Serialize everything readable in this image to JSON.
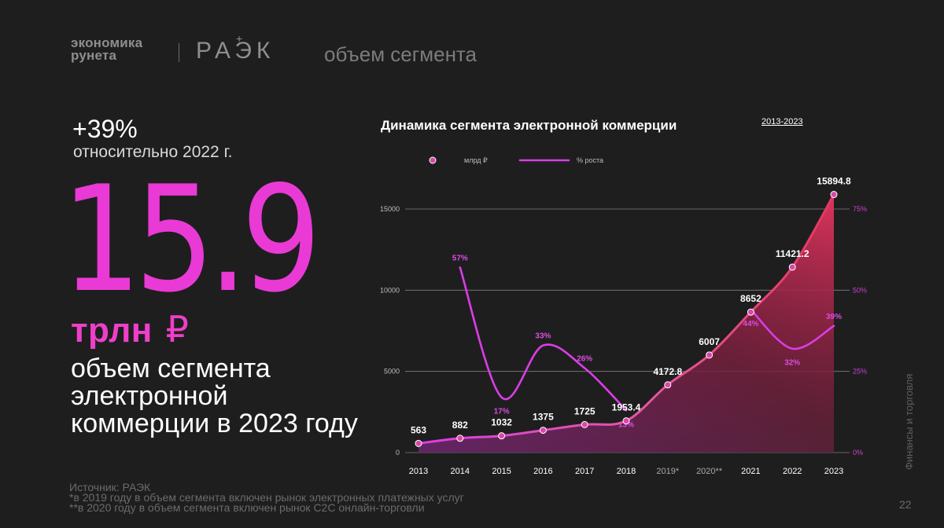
{
  "header": {
    "brand_line1": "экономика",
    "brand_line2": "рунета",
    "brand_raek": "РАЭК",
    "brand_raek_plus": "+",
    "section_title": "объем сегмента"
  },
  "highlight": {
    "growth_pct": "+39%",
    "growth_note": "относительно 2022 г.",
    "big_number": "15.9",
    "unit": "трлн",
    "currency": "₽",
    "headline": "объем сегмента электронной коммерции в 2023 году"
  },
  "footer": {
    "source": "Источник: РАЭК",
    "note_2019": "*в 2019 году в объем сегмента включен рынок электронных платежных услуг",
    "note_2020": "**в 2020 году в объем сегмента включен рынок C2C онлайн-торговли",
    "page_number": "22",
    "side_label": "Финансы и торговля"
  },
  "colors": {
    "background": "#1f1e1f",
    "accent_magenta": "#e93ad6",
    "volume_line": "#e7365f",
    "growth_line": "#d93ee6",
    "gridline": "#8a898b"
  },
  "chart_data": {
    "type": "line",
    "title": "Динамика сегмента электронной коммерции",
    "subtitle": "2013-2023",
    "legend_position": "top-left",
    "grid": true,
    "categories": [
      "2013",
      "2014",
      "2015",
      "2016",
      "2017",
      "2018",
      "2019*",
      "2020**",
      "2021",
      "2022",
      "2023"
    ],
    "y_ticks": [
      "0",
      "5000",
      "10000",
      "15000"
    ],
    "y2_ticks": [
      "0%",
      "25%",
      "50%",
      "75%"
    ],
    "ylim": [
      0,
      15000
    ],
    "y2lim": [
      0,
      75
    ],
    "series": [
      {
        "name": "млрд ₽",
        "axis": "left",
        "values": [
          563,
          882,
          1032,
          1375,
          1725,
          1953.4,
          4172.8,
          6007,
          8652,
          11421.2,
          15894.8
        ],
        "labels": [
          "563",
          "882",
          "1032",
          "1375",
          "1725",
          "1953.4",
          "4172.8",
          "6007",
          "8652",
          "11421.2",
          "15894.8"
        ]
      },
      {
        "name": "% роста",
        "axis": "right",
        "values": [
          null,
          57,
          17,
          33,
          26,
          13,
          null,
          null,
          44,
          32,
          39
        ],
        "labels": [
          "",
          "57%",
          "17%",
          "33%",
          "26%",
          "13%",
          "",
          "",
          "44%",
          "32%",
          "39%"
        ]
      }
    ]
  }
}
